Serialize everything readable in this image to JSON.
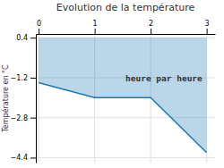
{
  "chart_data": {
    "type": "area",
    "title": "Evolution de la température",
    "y_label": "Température en °C",
    "x": [
      0,
      1,
      2,
      3
    ],
    "values": [
      -1.4,
      -2.0,
      -2.0,
      -4.2
    ],
    "fill_to": 0.4,
    "xlim": [
      -0.05,
      3.15
    ],
    "xticks": [
      0,
      1,
      2,
      3
    ],
    "ylim": [
      -4.6,
      0.55
    ],
    "yticks": [
      0.4,
      -1.2,
      -2.8,
      -4.4
    ],
    "grid": true,
    "annotations": [
      {
        "text": "heure par heure",
        "x": 1.55,
        "y": -1.35
      }
    ]
  }
}
